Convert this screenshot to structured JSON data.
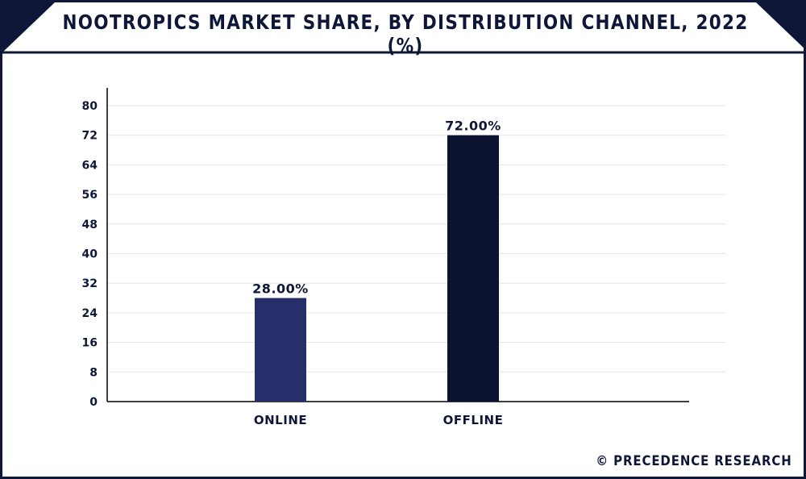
{
  "colors": {
    "navy": "#0f1738",
    "online_bar": "#272f6a",
    "offline_bar": "#0b1330",
    "grid": "#e6e6e6"
  },
  "header": {
    "title": "NOOTROPICS MARKET SHARE, BY DISTRIBUTION CHANNEL, 2022 (%)"
  },
  "footer": {
    "brand": "© PRECEDENCE RESEARCH"
  },
  "chart_data": {
    "type": "bar",
    "title": "NOOTROPICS MARKET SHARE, BY DISTRIBUTION CHANNEL, 2022 (%)",
    "categories": [
      "ONLINE",
      "OFFLINE"
    ],
    "values": [
      28,
      72
    ],
    "data_labels": [
      "28.00%",
      "72.00%"
    ],
    "xlabel": "",
    "ylabel": "",
    "ylim": [
      0,
      80
    ],
    "yticks": [
      "0",
      "8",
      "16",
      "24",
      "32",
      "40",
      "48",
      "56",
      "64",
      "72",
      "80"
    ],
    "grid": true,
    "legend": "none"
  }
}
